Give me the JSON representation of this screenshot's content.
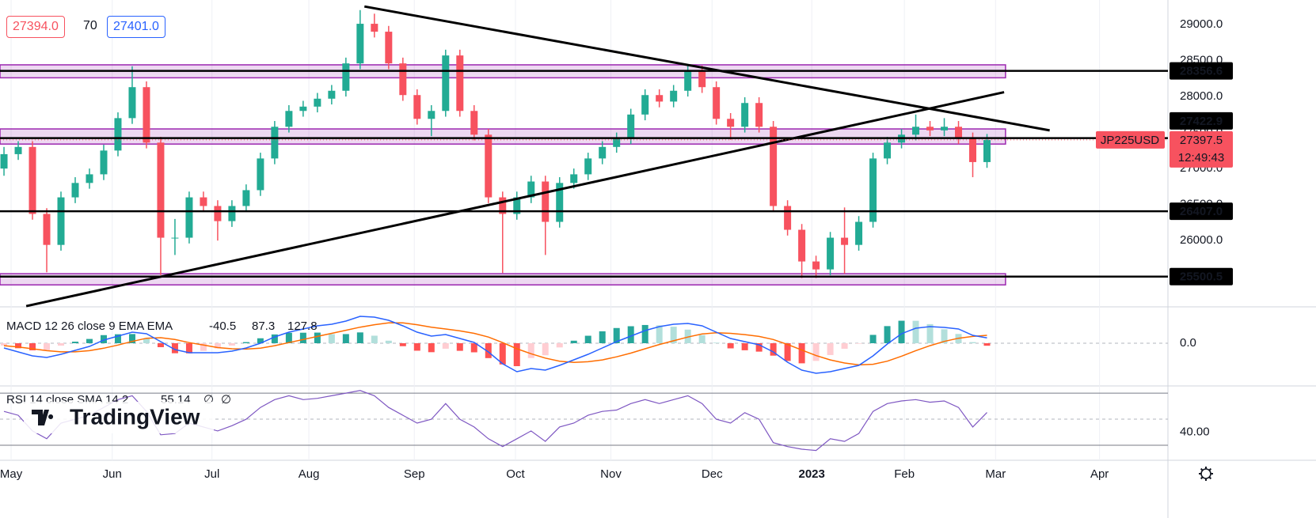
{
  "header": {
    "bid": "27394.0",
    "spread": "70",
    "ask": "27401.0"
  },
  "watermark": "TradingView",
  "chart_data": [
    {
      "type": "candlestick",
      "symbol": "JP225USD",
      "countdown": "12:49:43",
      "xlim": [
        -0.28,
        81.7
      ],
      "xticks": [
        {
          "value": 0.5,
          "label": "May"
        },
        {
          "value": 7.6,
          "label": "Jun"
        },
        {
          "value": 14.6,
          "label": "Jul"
        },
        {
          "value": 21.4,
          "label": "Aug"
        },
        {
          "value": 28.8,
          "label": "Sep"
        },
        {
          "value": 35.9,
          "label": "Oct"
        },
        {
          "value": 42.6,
          "label": "Nov"
        },
        {
          "value": 49.7,
          "label": "Dec"
        },
        {
          "value": 56.7,
          "label": "2023",
          "bold": true
        },
        {
          "value": 63.2,
          "label": "Feb"
        },
        {
          "value": 69.6,
          "label": "Mar"
        },
        {
          "value": 76.9,
          "label": "Apr"
        }
      ],
      "xgrid": true,
      "ygrid": false,
      "ylim": [
        25080,
        29340
      ],
      "yticks": [
        {
          "value": 29000,
          "label": "29000.0"
        },
        {
          "value": 28500,
          "label": "28500.0"
        },
        {
          "value": 28000,
          "label": "28000.0"
        },
        {
          "value": 27500,
          "label": "27500.0"
        },
        {
          "value": 27000,
          "label": "27000.0"
        },
        {
          "value": 26500,
          "label": "26500.0"
        },
        {
          "value": 26000,
          "label": "26000.0"
        }
      ],
      "up_color": "#22ab94",
      "down_color": "#f7525f",
      "open": [
        27000,
        27200,
        27300,
        26370,
        25940,
        26600,
        26800,
        26920,
        27250,
        27700,
        28130,
        27360,
        26040,
        26040,
        26600,
        26480,
        26270,
        26480,
        26700,
        27140,
        27580,
        27800,
        27860,
        27970,
        28080,
        28460,
        29010,
        28900,
        28460,
        28020,
        27690,
        27800,
        28570,
        27800,
        27470,
        26600,
        26370,
        26600,
        26820,
        26260,
        26800,
        26920,
        27140,
        27300,
        27420,
        27750,
        28020,
        27930,
        28080,
        28350,
        28130,
        27690,
        27580,
        27910,
        27580,
        26480,
        26150,
        25710,
        25600,
        26040,
        25940,
        26260,
        27140,
        27360,
        27470,
        27580,
        27530,
        27580,
        27420,
        27090
      ],
      "high": [
        27300,
        27380,
        27380,
        26450,
        26680,
        26880,
        27000,
        27330,
        27780,
        28420,
        28210,
        27440,
        26300,
        26680,
        26680,
        26560,
        26560,
        26780,
        27220,
        27660,
        27880,
        27940,
        28050,
        28160,
        28540,
        29200,
        29150,
        28980,
        28540,
        28100,
        27880,
        28650,
        28650,
        27880,
        27550,
        26680,
        26680,
        26900,
        26900,
        26880,
        27000,
        27220,
        27380,
        27500,
        27830,
        28100,
        28100,
        28160,
        28450,
        28430,
        28210,
        27770,
        27990,
        27990,
        27660,
        26560,
        26230,
        25790,
        26120,
        26460,
        26340,
        27220,
        27440,
        27550,
        27750,
        27660,
        27700,
        27660,
        27500,
        27480
      ],
      "low": [
        26900,
        27120,
        26290,
        25560,
        25860,
        26520,
        26720,
        26840,
        27170,
        27620,
        27280,
        25520,
        25800,
        25960,
        26400,
        26000,
        26190,
        26400,
        26620,
        27060,
        27500,
        27720,
        27780,
        27890,
        28000,
        28380,
        28820,
        28380,
        27940,
        27610,
        27450,
        27720,
        27720,
        27390,
        26520,
        25550,
        26290,
        26520,
        25800,
        26180,
        26720,
        26840,
        27060,
        27220,
        27340,
        27670,
        27850,
        27850,
        28000,
        28050,
        27610,
        27400,
        27500,
        27500,
        26400,
        26070,
        25480,
        25480,
        25520,
        25540,
        25860,
        26180,
        27060,
        27280,
        27390,
        27450,
        27450,
        27340,
        26880,
        27010
      ],
      "close": [
        27200,
        27300,
        26370,
        25940,
        26600,
        26800,
        26920,
        27250,
        27700,
        28130,
        27360,
        26040,
        26040,
        26600,
        26480,
        26270,
        26480,
        26700,
        27140,
        27580,
        27800,
        27860,
        27970,
        28080,
        28460,
        29010,
        28900,
        28460,
        28020,
        27690,
        27800,
        28570,
        27800,
        27470,
        26600,
        26370,
        26600,
        26820,
        26260,
        26800,
        26920,
        27140,
        27300,
        27420,
        27750,
        28020,
        27930,
        28080,
        28350,
        28130,
        27690,
        27580,
        27910,
        27580,
        26480,
        26150,
        25710,
        25600,
        26040,
        25940,
        26260,
        27140,
        27360,
        27470,
        27580,
        27530,
        27580,
        27420,
        27090,
        27397.5
      ],
      "levels": [
        28356.6,
        27422.9,
        {
          "value": 26407,
          "label": "26407.0"
        },
        25500.5
      ],
      "level_color": "#000000",
      "zones": [
        [
          28260,
          28440
        ],
        [
          27340,
          27550
        ],
        [
          25385,
          25540
        ]
      ],
      "zone_color": "#9c27b0",
      "trendlines": [
        {
          "x": [
            25.3,
            73.4
          ],
          "y": [
            29250,
            27530
          ]
        },
        {
          "x": [
            1.56,
            70.2
          ],
          "y": [
            25090,
            28060
          ]
        }
      ]
    },
    {
      "type": "macd",
      "title": "MACD 12 26 close 9 EMA EMA",
      "ylim": [
        -691,
        563
      ],
      "yticks": [
        {
          "value": 0,
          "label": "0.0"
        }
      ],
      "macd_color": "#2962ff",
      "signal_color": "#ff6d00",
      "hist_colors": [
        "#26a69a",
        "#b2dfdb",
        "#ffcdd2",
        "#ff5252"
      ],
      "macd": [
        -77,
        -141,
        -205,
        -230,
        -179,
        -115,
        -51,
        51,
        115,
        179,
        154,
        26,
        -102,
        -154,
        -154,
        -154,
        -128,
        -77,
        0,
        102,
        179,
        230,
        282,
        307,
        358,
        435,
        422,
        371,
        282,
        179,
        115,
        141,
        77,
        13,
        -141,
        -333,
        -461,
        -410,
        -435,
        -358,
        -269,
        -179,
        -77,
        26,
        115,
        205,
        269,
        307,
        320,
        282,
        179,
        77,
        26,
        -26,
        -141,
        -307,
        -435,
        -486,
        -461,
        -410,
        -358,
        -205,
        -13,
        154,
        243,
        269,
        256,
        230,
        128,
        87.3
      ],
      "signal": [
        -40,
        -60,
        -90,
        -120,
        -140,
        -140,
        -120,
        -80,
        -30,
        30,
        80,
        90,
        60,
        10,
        -30,
        -70,
        -90,
        -95,
        -80,
        -40,
        10,
        60,
        110,
        160,
        210,
        260,
        300,
        330,
        330,
        300,
        260,
        230,
        200,
        160,
        100,
        10,
        -90,
        -170,
        -240,
        -290,
        -310,
        -300,
        -270,
        -220,
        -160,
        -90,
        -20,
        40,
        100,
        150,
        170,
        160,
        140,
        110,
        60,
        -20,
        -110,
        -200,
        -270,
        -320,
        -350,
        -340,
        -290,
        -210,
        -120,
        -40,
        30,
        80,
        110,
        127.8
      ],
      "histogram": [
        -37,
        -81,
        -115,
        -110,
        -39,
        25,
        69,
        131,
        145,
        149,
        74,
        -64,
        -162,
        -164,
        -124,
        -84,
        -38,
        18,
        80,
        142,
        169,
        170,
        172,
        147,
        148,
        175,
        122,
        41,
        -48,
        -121,
        -145,
        -89,
        -123,
        -147,
        -241,
        -343,
        -371,
        -240,
        -195,
        -68,
        41,
        121,
        193,
        246,
        275,
        295,
        289,
        267,
        220,
        132,
        9,
        -83,
        -114,
        -136,
        -201,
        -287,
        -325,
        -286,
        -191,
        -90,
        -8,
        135,
        277,
        364,
        363,
        309,
        226,
        150,
        18,
        -40.5
      ]
    },
    {
      "type": "rsi",
      "title": "RSI 14 close SMA 14 2",
      "na_labels": [
        "∅",
        "∅"
      ],
      "ylim": [
        18.5,
        75.5
      ],
      "yticks": [
        {
          "value": 40,
          "label": "40.00"
        }
      ],
      "bands": [
        70,
        30
      ],
      "midline": 50,
      "color": "#7e57c2",
      "values": [
        56,
        53,
        41,
        35,
        47,
        50,
        53,
        59,
        65,
        68,
        56,
        38,
        39,
        47,
        44,
        41,
        45,
        50,
        59,
        65,
        68,
        65,
        66,
        68,
        70,
        72,
        68,
        59,
        53,
        47,
        50,
        62,
        50,
        44,
        35,
        29,
        35,
        41,
        33,
        44,
        47,
        53,
        56,
        57,
        62,
        65,
        62,
        65,
        68,
        62,
        50,
        47,
        55,
        50,
        32,
        29,
        27,
        26,
        35,
        33,
        39,
        56,
        62,
        64,
        65,
        63,
        64,
        59,
        44,
        55.14
      ]
    }
  ]
}
